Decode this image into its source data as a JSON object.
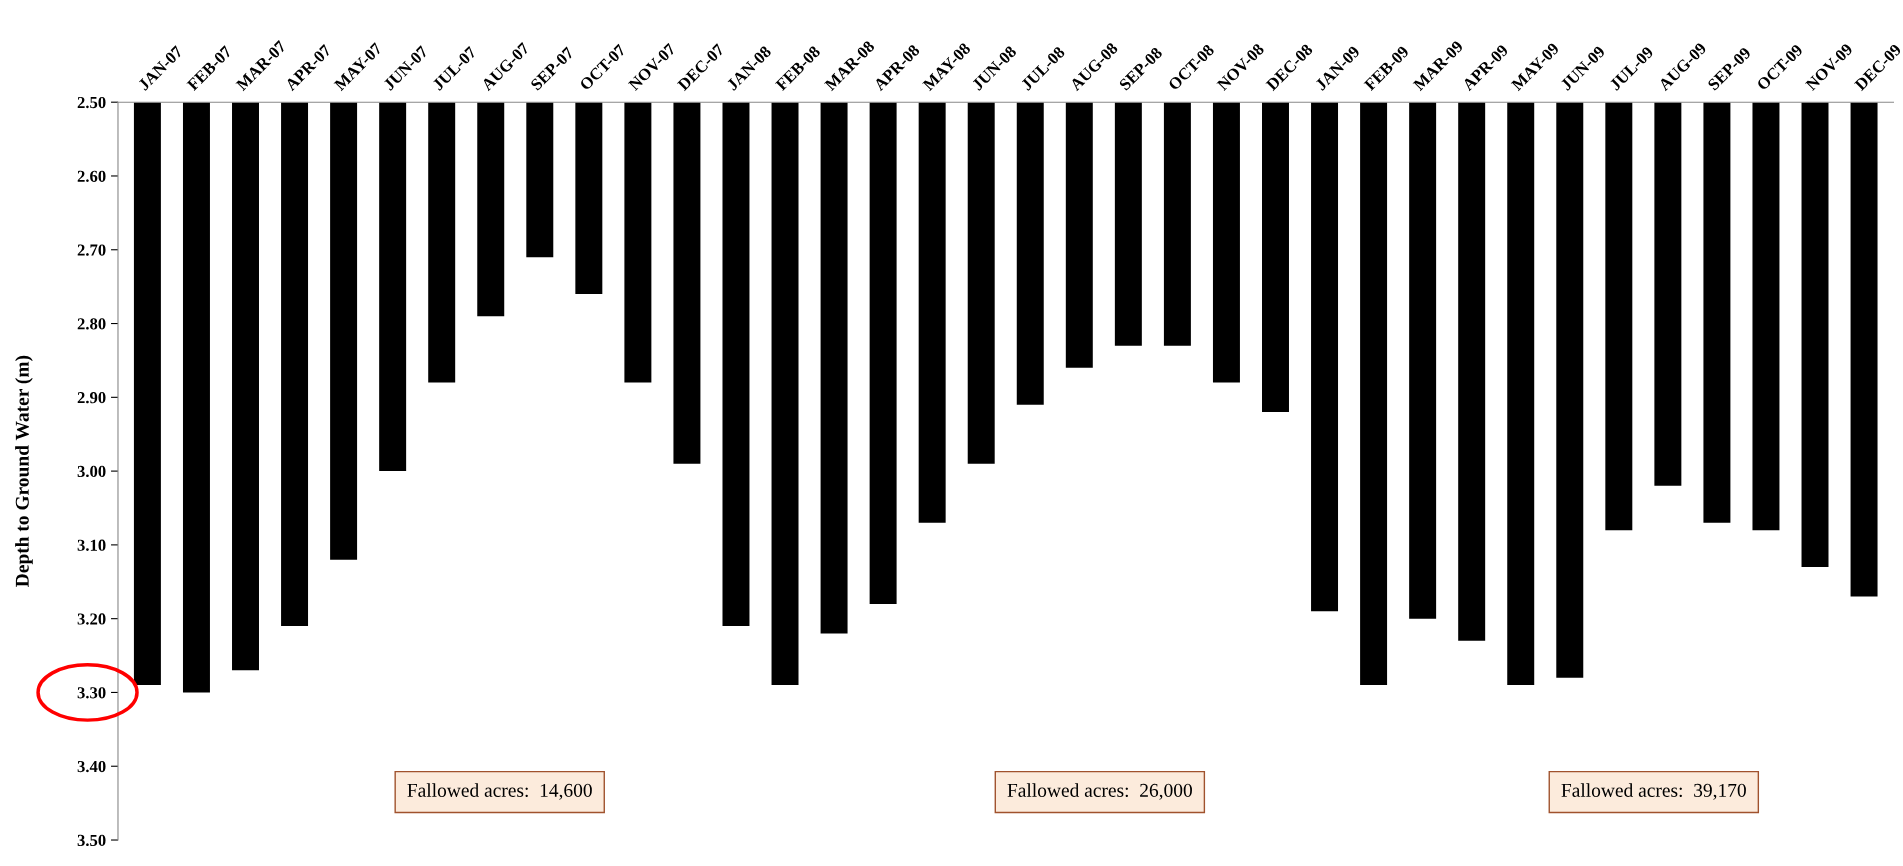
{
  "chart_data": {
    "type": "bar",
    "ylabel": "Depth to Ground Water (m)",
    "categories": [
      "JAN-07",
      "FEB-07",
      "MAR-07",
      "APR-07",
      "MAY-07",
      "JUN-07",
      "JUL-07",
      "AUG-07",
      "SEP-07",
      "OCT-07",
      "NOV-07",
      "DEC-07",
      "JAN-08",
      "FEB-08",
      "MAR-08",
      "APR-08",
      "MAY-08",
      "JUN-08",
      "JUL-08",
      "AUG-08",
      "SEP-08",
      "OCT-08",
      "NOV-08",
      "DEC-08",
      "JAN-09",
      "FEB-09",
      "MAR-09",
      "APR-09",
      "MAY-09",
      "JUN-09",
      "JUL-09",
      "AUG-09",
      "SEP-09",
      "OCT-09",
      "NOV-09",
      "DEC-09"
    ],
    "values": [
      3.29,
      3.3,
      3.27,
      3.21,
      3.12,
      3.0,
      2.88,
      2.79,
      2.71,
      2.76,
      2.88,
      2.99,
      3.21,
      3.29,
      3.22,
      3.18,
      3.07,
      2.99,
      2.91,
      2.86,
      2.83,
      2.83,
      2.88,
      2.92,
      3.19,
      3.29,
      3.2,
      3.23,
      3.29,
      3.28,
      3.08,
      3.02,
      3.07,
      3.08,
      3.13,
      3.17
    ],
    "color": "#000000",
    "ylim": [
      3.5,
      2.5
    ],
    "yticks": [
      {
        "value": 2.5,
        "label": "2.50"
      },
      {
        "value": 2.6,
        "label": "2.60"
      },
      {
        "value": 2.7,
        "label": "2.70"
      },
      {
        "value": 2.8,
        "label": "2.80"
      },
      {
        "value": 2.9,
        "label": "2.90"
      },
      {
        "value": 3.0,
        "label": "3.00"
      },
      {
        "value": 3.1,
        "label": "3.10"
      },
      {
        "value": 3.2,
        "label": "3.20"
      },
      {
        "value": 3.3,
        "label": "3.30"
      },
      {
        "value": 3.4,
        "label": "3.40"
      },
      {
        "value": 3.5,
        "label": "3.50"
      }
    ],
    "annotations": [
      "Fallowed acres:  14,600",
      "Fallowed acres:  26,000",
      "Fallowed acres:  39,170"
    ],
    "grid": false,
    "legend": false
  }
}
